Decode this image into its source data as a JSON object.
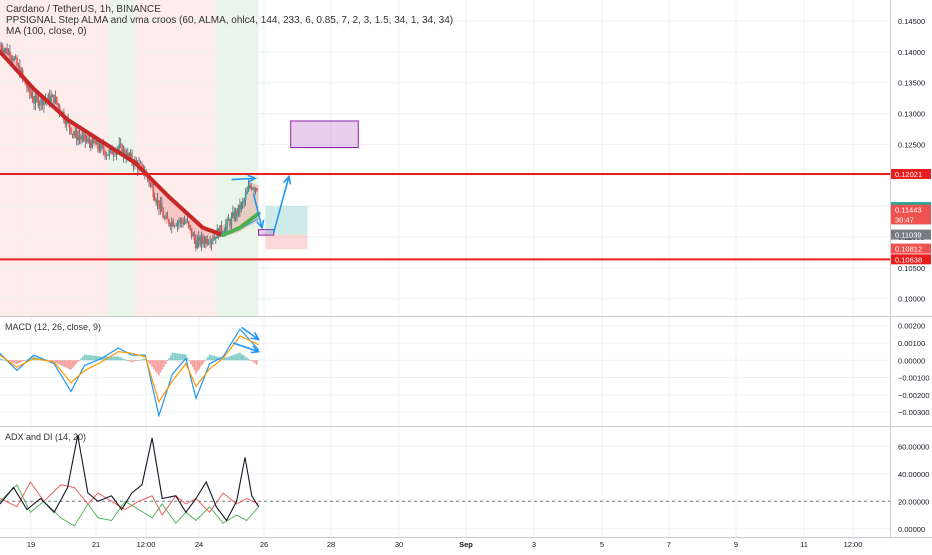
{
  "header": {
    "title": "Cardano / TetherUS, 1h, BINANCE",
    "indicator_1": "PPSIGNAL Step ALMA and vma croos (60, ALMA, ohlc4, 144, 233, 6, 0.85, 7, 2, 3, 1.5, 34, 1, 34, 34)",
    "indicator_2": "MA (100, close, 0)"
  },
  "panes": {
    "macd_label": "MACD (12, 26, close, 9)",
    "adx_label": "ADX and DI (14, 20)"
  },
  "colors": {
    "up": "#26a69a",
    "down": "#ef5350",
    "level": "#e91e1e",
    "arrow": "#2196f3",
    "zone": "#ce93d8",
    "alma": "#c62828",
    "signal_green": "#4caf50"
  },
  "chart_data": [
    {
      "type": "candlestick",
      "title": "Cardano / TetherUS, 1h, BINANCE",
      "x_ticks": [
        "19",
        "21",
        "12:00",
        "24",
        "26",
        "28",
        "30",
        "Sep",
        "3",
        "5",
        "7",
        "9",
        "11",
        "12:00"
      ],
      "y_ticks": [
        0.145,
        0.14,
        0.135,
        0.13,
        0.125,
        0.12,
        0.115,
        0.11,
        0.105,
        0.1
      ],
      "y_tick_labels": [
        "0.14500",
        "0.14000",
        "0.13500",
        "0.13000",
        "0.12500",
        "0.12000",
        "0.11500",
        "0.11000",
        "0.10500",
        "0.10000"
      ],
      "ylim": [
        0.0972,
        0.1484
      ],
      "price_path": [
        {
          "x": 0,
          "y": 0.141
        },
        {
          "x": 0.35,
          "y": 0.1395
        },
        {
          "x": 1.0,
          "y": 0.132
        },
        {
          "x": 1.6,
          "y": 0.1325
        },
        {
          "x": 2.2,
          "y": 0.1265
        },
        {
          "x": 2.8,
          "y": 0.125
        },
        {
          "x": 3.2,
          "y": 0.1235
        },
        {
          "x": 3.5,
          "y": 0.1245
        },
        {
          "x": 3.9,
          "y": 0.1225
        },
        {
          "x": 4.3,
          "y": 0.1205
        },
        {
          "x": 4.9,
          "y": 0.1125
        },
        {
          "x": 5.5,
          "y": 0.1125
        },
        {
          "x": 5.8,
          "y": 0.109
        },
        {
          "x": 6.3,
          "y": 0.11
        },
        {
          "x": 6.8,
          "y": 0.1125
        },
        {
          "x": 7.2,
          "y": 0.1155
        },
        {
          "x": 7.4,
          "y": 0.1185
        },
        {
          "x": 7.65,
          "y": 0.118
        }
      ],
      "ma_100": [
        {
          "x": 0,
          "y": 0.14
        },
        {
          "x": 1.0,
          "y": 0.134
        },
        {
          "x": 2.0,
          "y": 0.129
        },
        {
          "x": 3.0,
          "y": 0.1255
        },
        {
          "x": 4.0,
          "y": 0.122
        },
        {
          "x": 5.0,
          "y": 0.1165
        },
        {
          "x": 6.0,
          "y": 0.1115
        },
        {
          "x": 6.5,
          "y": 0.1105
        },
        {
          "x": 7.0,
          "y": 0.111
        },
        {
          "x": 7.65,
          "y": 0.113
        }
      ],
      "levels": [
        0.12021,
        0.10638
      ],
      "price_labels": [
        {
          "value": 0.12021,
          "label": "0.12021",
          "color": "#e91e1e"
        },
        {
          "value": 0.11485,
          "label": "0.11485",
          "color": "#26a69a"
        },
        {
          "value": 0.11443,
          "label": "0.11443",
          "color": "#ef5350"
        },
        {
          "value": 0.11285,
          "label": "30:47",
          "color": "#ef5350"
        },
        {
          "value": 0.11039,
          "label": "0.11039",
          "color": "#787b86"
        },
        {
          "value": 0.10812,
          "label": "0.10812",
          "color": "#ef5350"
        },
        {
          "value": 0.10638,
          "label": "0.10638",
          "color": "#e91e1e"
        }
      ],
      "zones": [
        {
          "x0": 8.6,
          "x1": 10.6,
          "y0": 0.1245,
          "y1": 0.1288,
          "kind": "purple"
        },
        {
          "x0": 7.65,
          "x1": 8.1,
          "y0": 0.1103,
          "y1": 0.1112,
          "kind": "purple"
        },
        {
          "x0": 7.85,
          "x1": 9.1,
          "y0": 0.11039,
          "y1": 0.115,
          "kind": "target"
        },
        {
          "x0": 7.85,
          "x1": 9.1,
          "y0": 0.108,
          "y1": 0.11039,
          "kind": "stop"
        }
      ],
      "arrows": [
        {
          "x0": 6.85,
          "y0": 0.1193,
          "x1": 7.55,
          "y1": 0.1195
        },
        {
          "x0": 7.5,
          "y0": 0.117,
          "x1": 7.75,
          "y1": 0.1115
        },
        {
          "x0": 8.1,
          "y0": 0.1108,
          "x1": 8.55,
          "y1": 0.1198
        }
      ],
      "bg_regions": [
        {
          "x0": 0,
          "x1": 3.2,
          "kind": "red"
        },
        {
          "x0": 3.2,
          "x1": 4.0,
          "kind": "green"
        },
        {
          "x0": 4.0,
          "x1": 6.4,
          "kind": "red"
        },
        {
          "x0": 6.4,
          "x1": 7.65,
          "kind": "green"
        }
      ]
    },
    {
      "type": "line",
      "title": "MACD (12, 26, close, 9)",
      "y_ticks": [
        0.002,
        0.001,
        0.0,
        -0.001,
        -0.002,
        -0.003
      ],
      "y_tick_labels": [
        "0.00200",
        "0.00100",
        "0.00000",
        "−0.00100",
        "−0.00200",
        "−0.00300"
      ],
      "ylim": [
        -0.0038,
        0.0025
      ],
      "series": [
        {
          "values": [
            {
              "x": 0,
              "y": 0.0004
            },
            {
              "x": 0.5,
              "y": -0.0006
            },
            {
              "x": 1.0,
              "y": 0.0003
            },
            {
              "x": 1.6,
              "y": -0.0002
            },
            {
              "x": 2.1,
              "y": -0.0018
            },
            {
              "x": 2.5,
              "y": -0.0003
            },
            {
              "x": 3.0,
              "y": 0.0001
            },
            {
              "x": 3.5,
              "y": 0.0007
            },
            {
              "x": 3.9,
              "y": 0.0003
            },
            {
              "x": 4.3,
              "y": 0.0003
            },
            {
              "x": 4.7,
              "y": -0.0032
            },
            {
              "x": 5.1,
              "y": -0.0008
            },
            {
              "x": 5.5,
              "y": 0.0001
            },
            {
              "x": 5.8,
              "y": -0.0022
            },
            {
              "x": 6.2,
              "y": -0.0002
            },
            {
              "x": 6.6,
              "y": 0.0002
            },
            {
              "x": 7.1,
              "y": 0.0018
            },
            {
              "x": 7.65,
              "y": 0.0006
            }
          ]
        },
        {
          "values": [
            {
              "x": 0,
              "y": 0.0003
            },
            {
              "x": 0.5,
              "y": -0.0004
            },
            {
              "x": 1.0,
              "y": 0.0001
            },
            {
              "x": 1.6,
              "y": -0.0001
            },
            {
              "x": 2.1,
              "y": -0.0013
            },
            {
              "x": 2.5,
              "y": -0.0006
            },
            {
              "x": 3.0,
              "y": -0.0001
            },
            {
              "x": 3.5,
              "y": 0.0005
            },
            {
              "x": 3.9,
              "y": 0.0004
            },
            {
              "x": 4.3,
              "y": 0.0002
            },
            {
              "x": 4.7,
              "y": -0.0024
            },
            {
              "x": 5.1,
              "y": -0.0012
            },
            {
              "x": 5.5,
              "y": -0.0002
            },
            {
              "x": 5.8,
              "y": -0.0015
            },
            {
              "x": 6.2,
              "y": -0.0005
            },
            {
              "x": 6.6,
              "y": 0.0001
            },
            {
              "x": 7.1,
              "y": 0.0014
            },
            {
              "x": 7.65,
              "y": 0.0009
            }
          ]
        }
      ],
      "arrows": [
        {
          "x0": 6.9,
          "y0": 0.001,
          "x1": 7.65,
          "y1": 0.0005
        },
        {
          "x0": 7.15,
          "y0": 0.0019,
          "x1": 7.65,
          "y1": 0.0012
        }
      ]
    },
    {
      "type": "line",
      "title": "ADX and DI (14, 20)",
      "y_ticks": [
        60,
        40,
        20,
        0
      ],
      "y_tick_labels": [
        "60.00000",
        "40.00000",
        "20.00000",
        "0.00000"
      ],
      "ylim": [
        -6,
        74
      ],
      "level": 20,
      "series": [
        {
          "values": [
            {
              "x": 0,
              "y": 20
            },
            {
              "x": 0.5,
              "y": 32
            },
            {
              "x": 0.9,
              "y": 12
            },
            {
              "x": 1.3,
              "y": 20
            },
            {
              "x": 1.8,
              "y": 8
            },
            {
              "x": 2.2,
              "y": 2
            },
            {
              "x": 2.6,
              "y": 18
            },
            {
              "x": 2.9,
              "y": 8
            },
            {
              "x": 3.3,
              "y": 6
            },
            {
              "x": 3.7,
              "y": 20
            },
            {
              "x": 4.1,
              "y": 14
            },
            {
              "x": 4.5,
              "y": 8
            },
            {
              "x": 4.8,
              "y": 18
            },
            {
              "x": 5.2,
              "y": 4
            },
            {
              "x": 5.5,
              "y": 12
            },
            {
              "x": 5.8,
              "y": 6
            },
            {
              "x": 6.2,
              "y": 16
            },
            {
              "x": 6.6,
              "y": 4
            },
            {
              "x": 7.0,
              "y": 10
            },
            {
              "x": 7.3,
              "y": 6
            },
            {
              "x": 7.65,
              "y": 16
            }
          ]
        },
        {
          "values": [
            {
              "x": 0,
              "y": 22
            },
            {
              "x": 0.5,
              "y": 16
            },
            {
              "x": 0.9,
              "y": 34
            },
            {
              "x": 1.3,
              "y": 20
            },
            {
              "x": 1.8,
              "y": 32
            },
            {
              "x": 2.2,
              "y": 30
            },
            {
              "x": 2.6,
              "y": 18
            },
            {
              "x": 2.9,
              "y": 26
            },
            {
              "x": 3.3,
              "y": 20
            },
            {
              "x": 3.7,
              "y": 14
            },
            {
              "x": 4.1,
              "y": 20
            },
            {
              "x": 4.5,
              "y": 24
            },
            {
              "x": 4.8,
              "y": 10
            },
            {
              "x": 5.2,
              "y": 24
            },
            {
              "x": 5.5,
              "y": 18
            },
            {
              "x": 5.8,
              "y": 22
            },
            {
              "x": 6.2,
              "y": 12
            },
            {
              "x": 6.6,
              "y": 26
            },
            {
              "x": 7.0,
              "y": 18
            },
            {
              "x": 7.3,
              "y": 22
            },
            {
              "x": 7.65,
              "y": 18
            }
          ]
        },
        {
          "values": [
            {
              "x": 0,
              "y": 18
            },
            {
              "x": 0.4,
              "y": 30
            },
            {
              "x": 0.8,
              "y": 14
            },
            {
              "x": 1.2,
              "y": 22
            },
            {
              "x": 1.6,
              "y": 12
            },
            {
              "x": 2.0,
              "y": 30
            },
            {
              "x": 2.3,
              "y": 68
            },
            {
              "x": 2.6,
              "y": 26
            },
            {
              "x": 2.9,
              "y": 20
            },
            {
              "x": 3.3,
              "y": 24
            },
            {
              "x": 3.6,
              "y": 14
            },
            {
              "x": 3.9,
              "y": 26
            },
            {
              "x": 4.2,
              "y": 32
            },
            {
              "x": 4.5,
              "y": 66
            },
            {
              "x": 4.8,
              "y": 22
            },
            {
              "x": 5.2,
              "y": 24
            },
            {
              "x": 5.5,
              "y": 12
            },
            {
              "x": 5.8,
              "y": 22
            },
            {
              "x": 6.1,
              "y": 34
            },
            {
              "x": 6.4,
              "y": 16
            },
            {
              "x": 6.7,
              "y": 6
            },
            {
              "x": 7.0,
              "y": 20
            },
            {
              "x": 7.25,
              "y": 52
            },
            {
              "x": 7.45,
              "y": 24
            },
            {
              "x": 7.65,
              "y": 16
            }
          ]
        }
      ]
    }
  ]
}
